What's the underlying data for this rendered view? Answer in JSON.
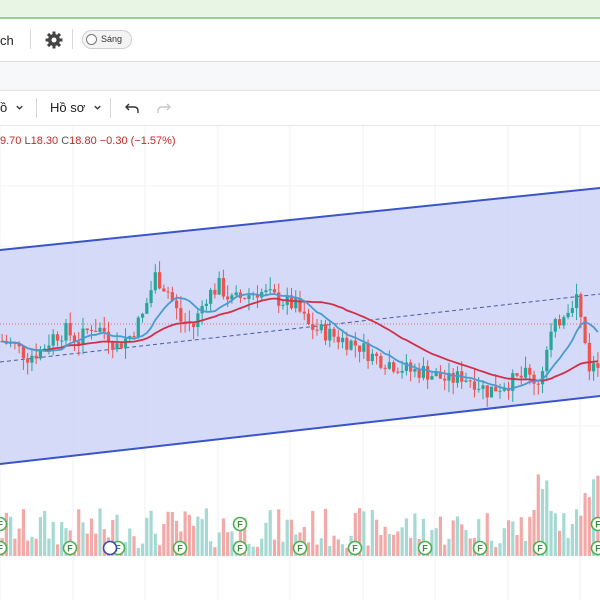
{
  "topbar": {
    "partial_label": "ch",
    "theme_toggle_label": "Sáng"
  },
  "toolbar2": {
    "partial_label": "ồ",
    "profile_label": "Hồ sơ"
  },
  "ohlc": {
    "high": "9.70",
    "low_prefix": "L",
    "low": "18.30",
    "close_prefix": "C",
    "close": "18.80",
    "change": "−0.30",
    "change_pct": "(−1.57%)"
  },
  "colors": {
    "up": "#26a69a",
    "down": "#ef5350",
    "ma_fast": "#4b9ad2",
    "ma_slow": "#d0304a",
    "channel": "#3a54c9",
    "channel_fill": "#cdd3f7"
  },
  "icons": {
    "settings": "gear-icon",
    "undo": "undo-icon",
    "redo": "redo-icon",
    "dropdown": "chevron-down-icon",
    "event_marker": "f-circle-icon"
  },
  "chart_data": {
    "type": "candlestick",
    "series": [
      {
        "name": "price_close_trend",
        "values": [
          19.3,
          19.2,
          19.0,
          19.1,
          19.4,
          19.5,
          19.3,
          19.6,
          19.5,
          19.2,
          19.4,
          19.8,
          20.6,
          20.3,
          19.7,
          19.6,
          20.2,
          20.4,
          20.1,
          20.2,
          20.3,
          20.2,
          20.1,
          20.0,
          19.6,
          19.5,
          19.4,
          19.3,
          19.2,
          19.0,
          18.9,
          18.8,
          18.7,
          18.7,
          18.6,
          18.5,
          18.6,
          18.5,
          18.3,
          18.4,
          18.5,
          18.6,
          18.5,
          19.4,
          19.9,
          20.2,
          18.8
        ]
      }
    ]
  }
}
